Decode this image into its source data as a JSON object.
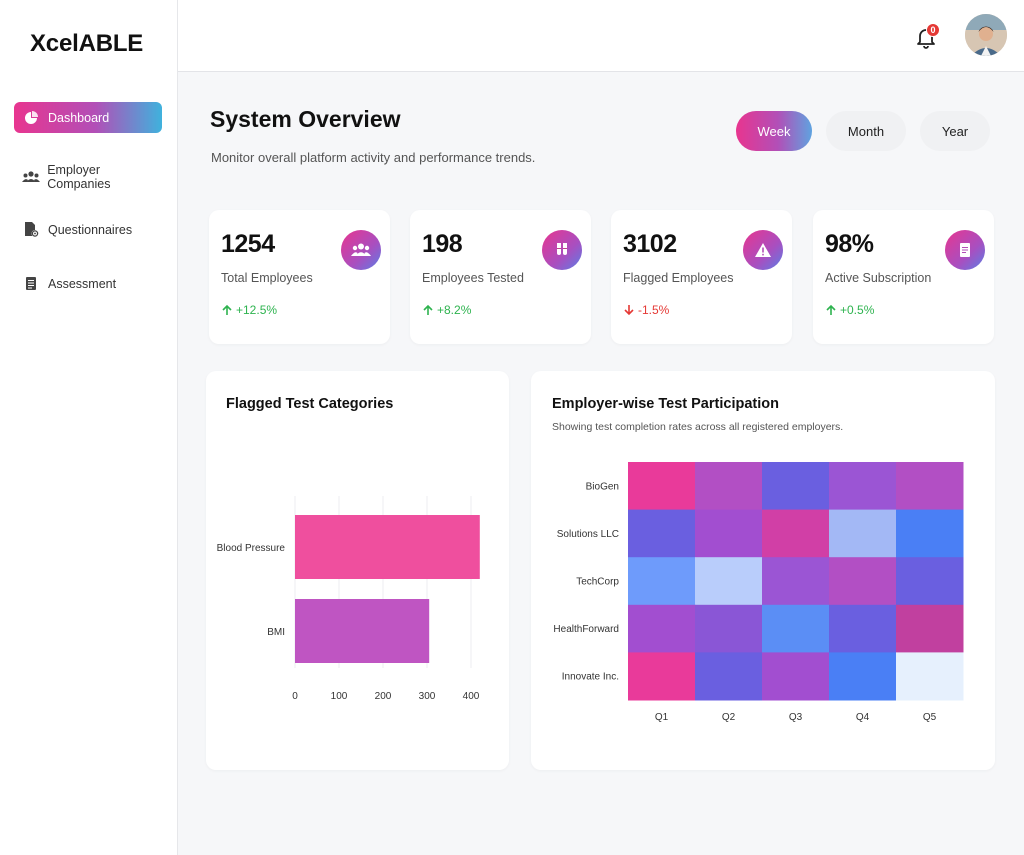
{
  "app": {
    "logo": "XcelABLE"
  },
  "sidebar": {
    "items": [
      {
        "label": "Dashboard",
        "icon": "pie-chart-icon",
        "active": true
      },
      {
        "label": "Employer Companies",
        "icon": "users-icon",
        "active": false
      },
      {
        "label": "Questionnaires",
        "icon": "file-gear-icon",
        "active": false
      },
      {
        "label": "Assessment",
        "icon": "document-icon",
        "active": false
      }
    ]
  },
  "header": {
    "notification_count": "0",
    "bell_icon": "bell-icon",
    "avatar_icon": "user-avatar"
  },
  "main": {
    "title": "System Overview",
    "subtitle": "Monitor overall platform activity and performance trends.",
    "periods": [
      {
        "label": "Week",
        "active": true
      },
      {
        "label": "Month",
        "active": false
      },
      {
        "label": "Year",
        "active": false
      }
    ],
    "stats": [
      {
        "value": "1254",
        "label": "Total Employees",
        "change": "+12.5%",
        "trend": "up",
        "icon": "users-icon"
      },
      {
        "value": "198",
        "label": "Employees Tested",
        "change": "+8.2%",
        "trend": "up",
        "icon": "test-tubes-icon"
      },
      {
        "value": "3102",
        "label": "Flagged Employees",
        "change": "-1.5%",
        "trend": "down",
        "icon": "warning-icon"
      },
      {
        "value": "98%",
        "label": "Active Subscription",
        "change": "+0.5%",
        "trend": "up",
        "icon": "document-icon"
      }
    ],
    "flagged_panel": {
      "title": "Flagged Test Categories"
    },
    "participation_panel": {
      "title": "Employer-wise Test Participation",
      "subtitle": "Showing test completion rates across all registered employers."
    }
  },
  "colors": {
    "accent_pink": "#e8358f",
    "accent_purple": "#b24fb7",
    "accent_blue": "#3fb2dd",
    "up": "#2eb34f",
    "down": "#e53935"
  },
  "chart_data": [
    {
      "type": "bar",
      "orientation": "horizontal",
      "title": "Flagged Test Categories",
      "categories": [
        "Blood Pressure",
        "BMI"
      ],
      "values": [
        420,
        305
      ],
      "colors": [
        "#ef4f9e",
        "#bf55c2"
      ],
      "xticks": [
        0,
        100,
        200,
        300,
        400
      ],
      "xlim": [
        0,
        400
      ],
      "grid": true
    },
    {
      "type": "heatmap",
      "title": "Employer-wise Test Participation",
      "rows": [
        "BioGen",
        "Solutions LLC",
        "TechCorp",
        "HealthForward",
        "Innovate Inc."
      ],
      "columns": [
        "Q1",
        "Q2",
        "Q3",
        "Q4",
        "Q5"
      ],
      "cell_colors": [
        [
          "#e93a9a",
          "#b24fc4",
          "#6a5fe0",
          "#9b55d4",
          "#b24fc4"
        ],
        [
          "#6a5fe0",
          "#a24ed0",
          "#d13fa6",
          "#a3b8f5",
          "#4a7ff5"
        ],
        [
          "#6e9bfb",
          "#b9cdfb",
          "#9b55d4",
          "#b24fc4",
          "#6a5fe0"
        ],
        [
          "#a24ed0",
          "#8a56d6",
          "#5b8ef5",
          "#6a5fe0",
          "#c1409f"
        ],
        [
          "#e93a9a",
          "#6a5fe0",
          "#a24ed0",
          "#4a7ff5",
          "#e6f0fd"
        ]
      ]
    }
  ]
}
